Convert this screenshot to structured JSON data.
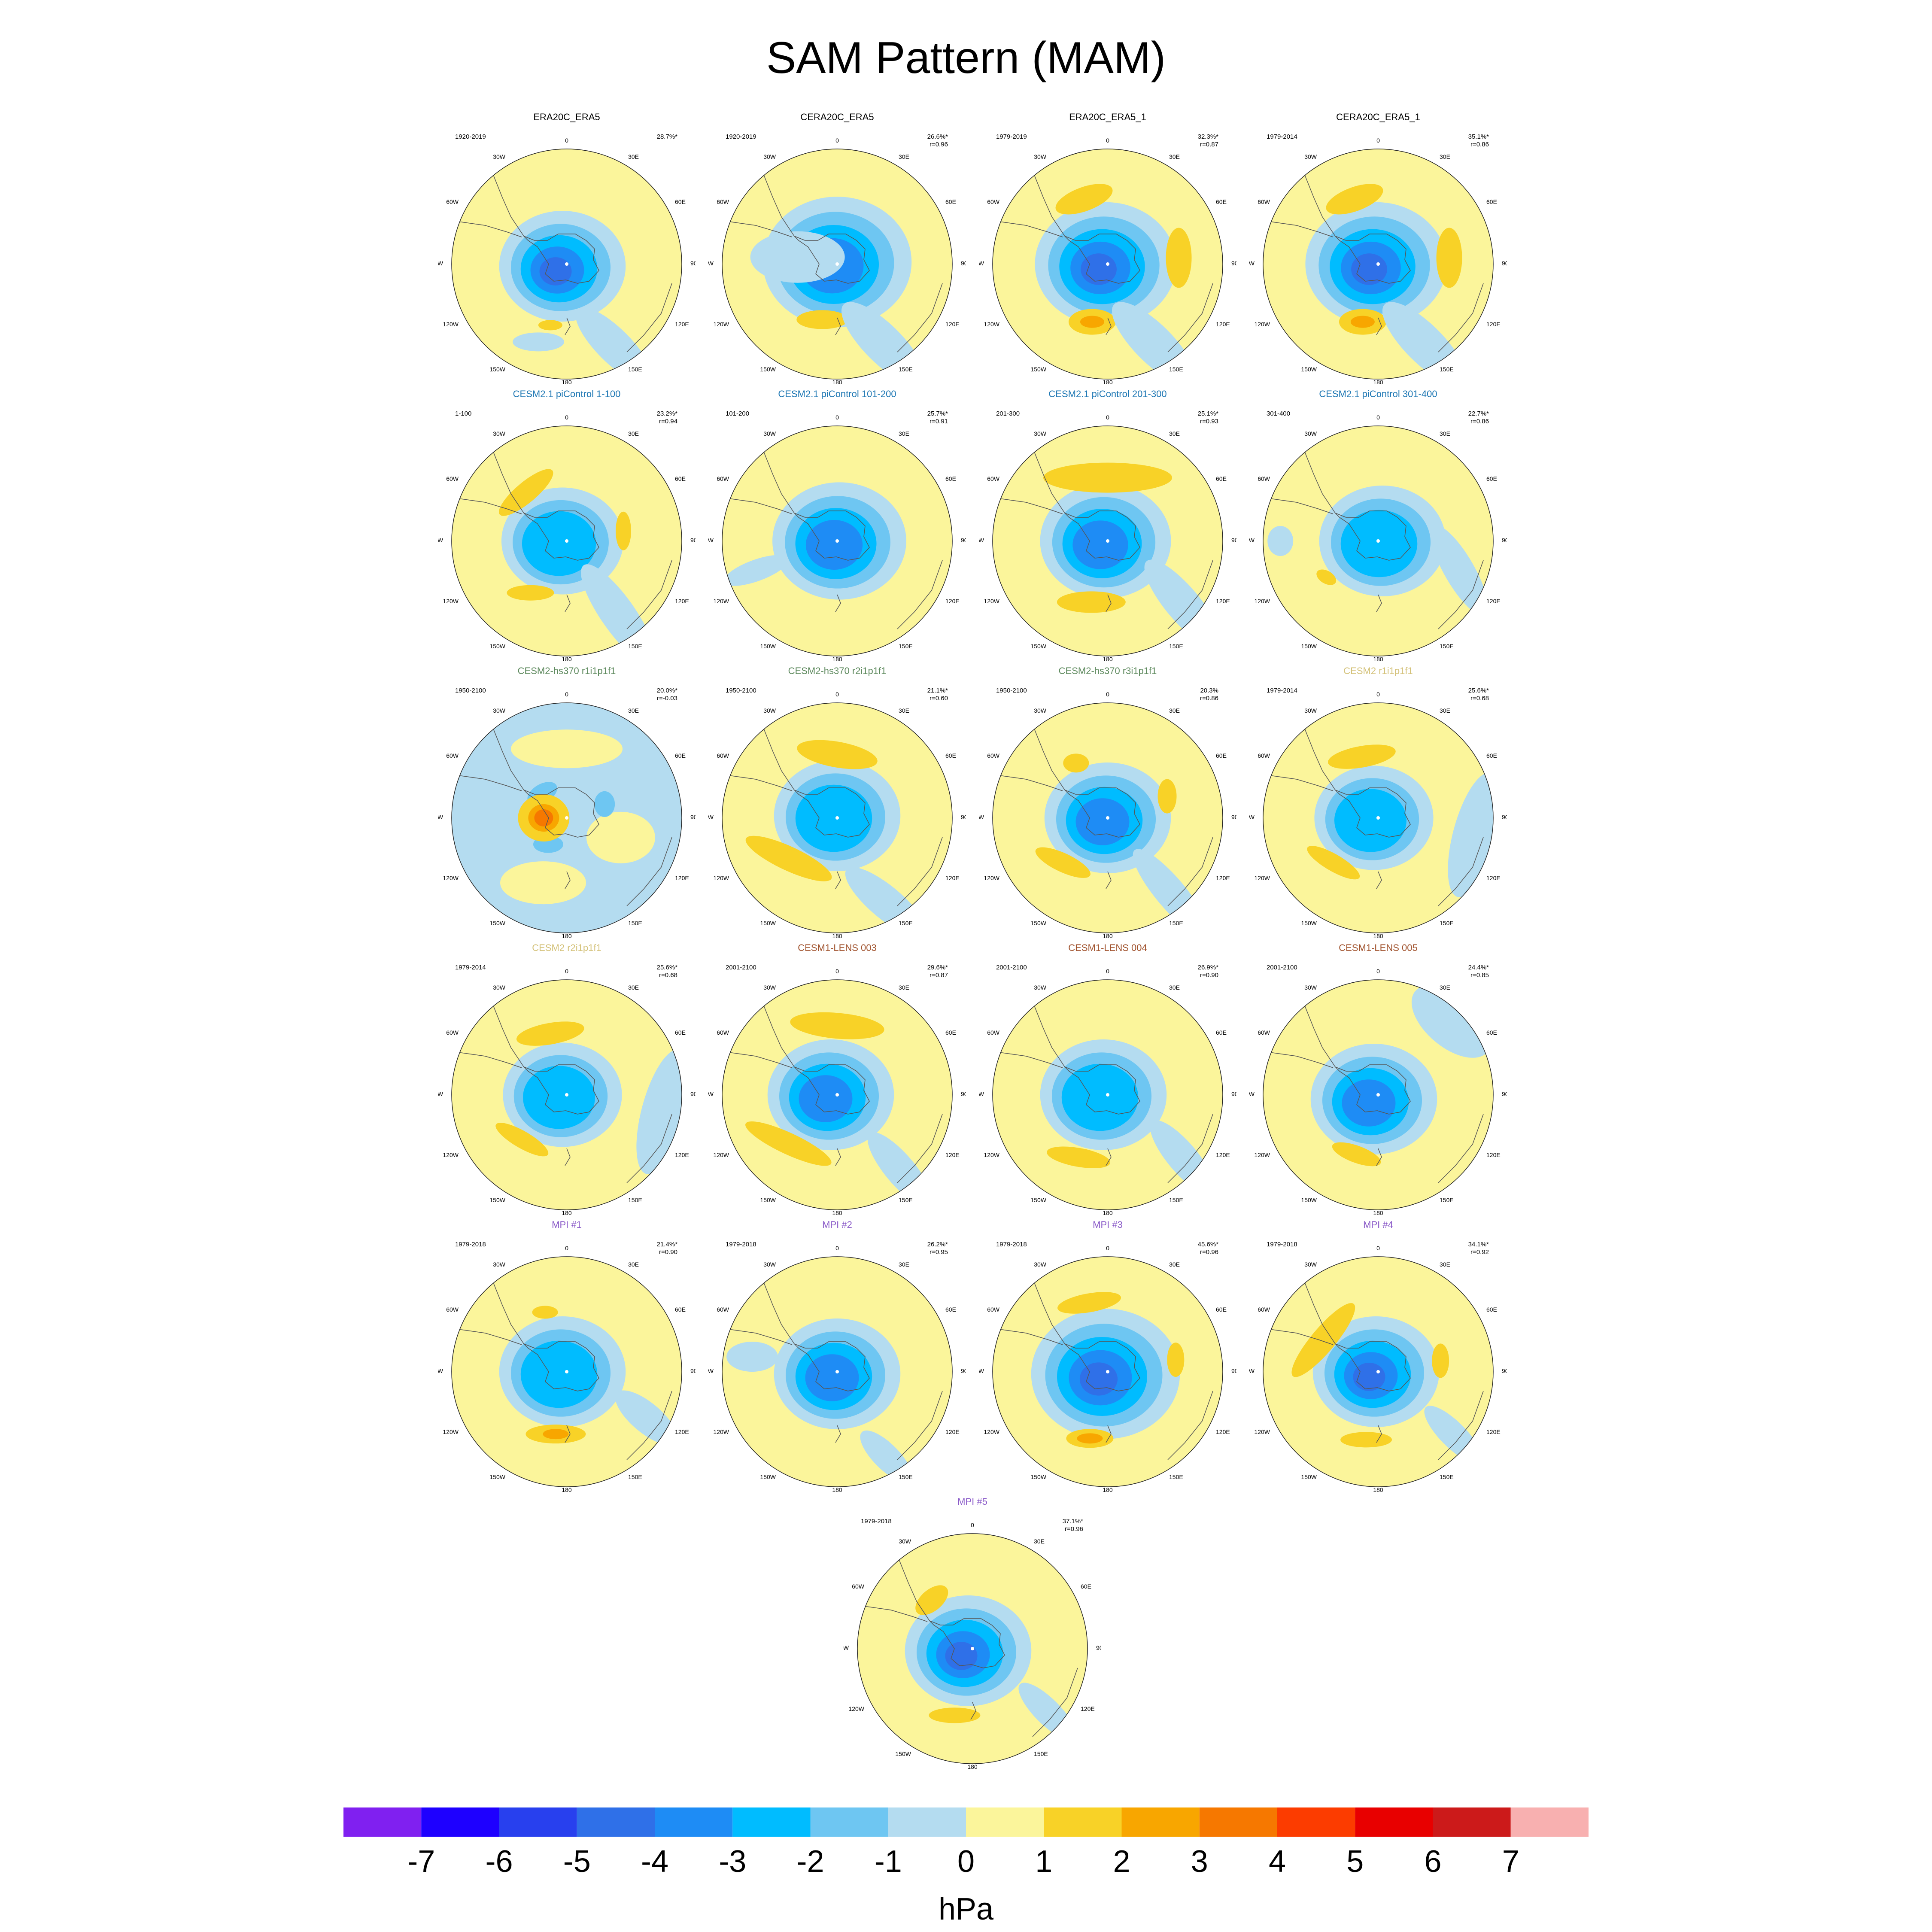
{
  "title": "SAM Pattern (MAM)",
  "units": "hPa",
  "panel_longitude_labels": [
    "0",
    "30E",
    "60E",
    "90E",
    "120E",
    "150E",
    "180",
    "150W",
    "120W",
    "90W",
    "60W",
    "30W"
  ],
  "panels": [
    {
      "title": "ERA20C_ERA5",
      "years": "1920-2019",
      "pct": "28.7%*",
      "r": "",
      "title_color": "#000000",
      "pattern": "era1"
    },
    {
      "title": "CERA20C_ERA5",
      "years": "1920-2019",
      "pct": "26.6%*",
      "r": "r=0.96",
      "title_color": "#000000",
      "pattern": "era2"
    },
    {
      "title": "ERA20C_ERA5_1",
      "years": "1979-2019",
      "pct": "32.3%*",
      "r": "r=0.87",
      "title_color": "#000000",
      "pattern": "era3"
    },
    {
      "title": "CERA20C_ERA5_1",
      "years": "1979-2014",
      "pct": "35.1%*",
      "r": "r=0.86",
      "title_color": "#000000",
      "pattern": "era3"
    },
    {
      "title": "CESM2.1 piControl 1-100",
      "years": "1-100",
      "pct": "23.2%*",
      "r": "r=0.94",
      "title_color": "#1f78b4",
      "pattern": "pic1"
    },
    {
      "title": "CESM2.1 piControl 101-200",
      "years": "101-200",
      "pct": "25.7%*",
      "r": "r=0.91",
      "title_color": "#1f78b4",
      "pattern": "pic2"
    },
    {
      "title": "CESM2.1 piControl 201-300",
      "years": "201-300",
      "pct": "25.1%*",
      "r": "r=0.93",
      "title_color": "#1f78b4",
      "pattern": "pic3"
    },
    {
      "title": "CESM2.1 piControl 301-400",
      "years": "301-400",
      "pct": "22.7%*",
      "r": "r=0.86",
      "title_color": "#1f78b4",
      "pattern": "pic4"
    },
    {
      "title": "CESM2-hs370 r1i1p1f1",
      "years": "1950-2100",
      "pct": "20.0%*",
      "r": "r=-0.03",
      "title_color": "#5e8a5e",
      "pattern": "hs1"
    },
    {
      "title": "CESM2-hs370 r2i1p1f1",
      "years": "1950-2100",
      "pct": "21.1%*",
      "r": "r=0.60",
      "title_color": "#5e8a5e",
      "pattern": "hs2"
    },
    {
      "title": "CESM2-hs370 r3i1p1f1",
      "years": "1950-2100",
      "pct": "20.3%",
      "r": "r=0.86",
      "title_color": "#5e8a5e",
      "pattern": "hs3"
    },
    {
      "title": "CESM2 r1i1p1f1",
      "years": "1979-2014",
      "pct": "25.6%*",
      "r": "r=0.68",
      "title_color": "#d4c27a",
      "pattern": "c2a"
    },
    {
      "title": "CESM2 r2i1p1f1",
      "years": "1979-2014",
      "pct": "25.6%*",
      "r": "r=0.68",
      "title_color": "#d4c27a",
      "pattern": "c2a"
    },
    {
      "title": "CESM1-LENS 003",
      "years": "2001-2100",
      "pct": "29.6%*",
      "r": "r=0.87",
      "title_color": "#a0522d",
      "pattern": "lens1"
    },
    {
      "title": "CESM1-LENS 004",
      "years": "2001-2100",
      "pct": "26.9%*",
      "r": "r=0.90",
      "title_color": "#a0522d",
      "pattern": "lens2"
    },
    {
      "title": "CESM1-LENS 005",
      "years": "2001-2100",
      "pct": "24.4%*",
      "r": "r=0.85",
      "title_color": "#a0522d",
      "pattern": "lens3"
    },
    {
      "title": "MPI #1",
      "years": "1979-2018",
      "pct": "21.4%*",
      "r": "r=0.90",
      "title_color": "#8a5ac8",
      "pattern": "mpi1"
    },
    {
      "title": "MPI #2",
      "years": "1979-2018",
      "pct": "26.2%*",
      "r": "r=0.95",
      "title_color": "#8a5ac8",
      "pattern": "mpi2"
    },
    {
      "title": "MPI #3",
      "years": "1979-2018",
      "pct": "45.6%*",
      "r": "r=0.96",
      "title_color": "#8a5ac8",
      "pattern": "mpi3"
    },
    {
      "title": "MPI #4",
      "years": "1979-2018",
      "pct": "34.1%*",
      "r": "r=0.92",
      "title_color": "#8a5ac8",
      "pattern": "mpi4"
    },
    {
      "title": "MPI #5",
      "years": "1979-2018",
      "pct": "37.1%*",
      "r": "r=0.96",
      "title_color": "#8a5ac8",
      "pattern": "mpi5"
    }
  ],
  "colorbar": {
    "colors": [
      "#8020f0",
      "#1e00ff",
      "#2840ee",
      "#2f70e8",
      "#1e8cf5",
      "#00bcff",
      "#6ec6f2",
      "#b4dcf0",
      "#fbf59b",
      "#f8d227",
      "#f8a600",
      "#f67800",
      "#fc3c00",
      "#e80000",
      "#cc1a1a",
      "#f8b0b0"
    ],
    "tick_labels": [
      "-7",
      "-6",
      "-5",
      "-4",
      "-3",
      "-2",
      "-1",
      "0",
      "1",
      "2",
      "3",
      "4",
      "5",
      "6",
      "7"
    ]
  },
  "palette": {
    "ocean_neutral": "#fbf59b",
    "neg1": "#b4dcf0",
    "neg2": "#6ec6f2",
    "neg3": "#00bcff",
    "neg4": "#1e8cf5",
    "neg5": "#2f70e8",
    "pos1": "#f8d227",
    "pos2": "#f8a600",
    "pos3": "#f67800",
    "coast": "#555555"
  }
}
